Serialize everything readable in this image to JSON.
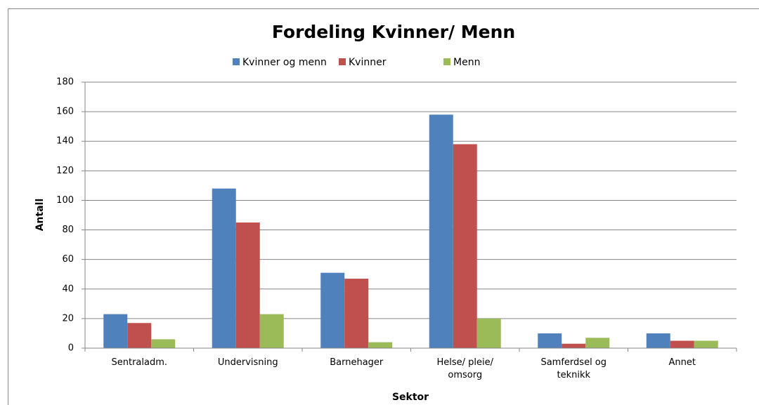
{
  "chart_data": {
    "type": "bar",
    "title": "Fordeling Kvinner/ Menn",
    "categories": [
      "Sentraladm.",
      "Undervisning",
      "Barnehager",
      "Helse/ pleie/ omsorg",
      "Samferdsel og teknikk",
      "Annet"
    ],
    "series": [
      {
        "name": "Kvinner og menn",
        "color": "#4f81bd",
        "values": [
          23,
          108,
          51,
          158,
          10,
          10
        ]
      },
      {
        "name": "Kvinner",
        "color": "#c0504d",
        "values": [
          17,
          85,
          47,
          138,
          3,
          5
        ]
      },
      {
        "name": "Menn",
        "color": "#9bbb59",
        "values": [
          6,
          23,
          4,
          20,
          7,
          5
        ]
      }
    ],
    "x_label": "Sektor",
    "y_label": "Antall",
    "ylim": [
      0,
      180
    ],
    "yticks": [
      0,
      20,
      40,
      60,
      80,
      100,
      120,
      140,
      160,
      180
    ],
    "grid": true,
    "legend": "top"
  }
}
